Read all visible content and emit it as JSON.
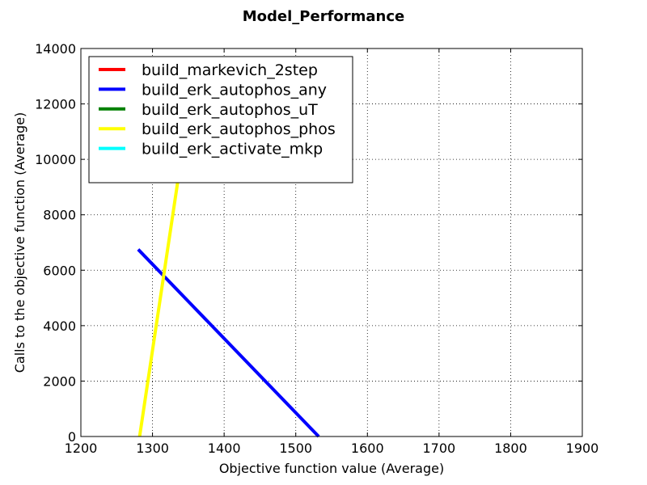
{
  "chart_data": {
    "type": "line",
    "title": "Model_Performance",
    "xlabel": "Objective function value (Average)",
    "ylabel": "Calls to the objective function (Average)",
    "xlim": [
      1200,
      1900
    ],
    "ylim": [
      0,
      14000
    ],
    "x_ticks": [
      1200,
      1300,
      1400,
      1500,
      1600,
      1700,
      1800,
      1900
    ],
    "y_ticks": [
      0,
      2000,
      4000,
      6000,
      8000,
      10000,
      12000,
      14000
    ],
    "grid": true,
    "legend_position": "top-left",
    "series": [
      {
        "name": "build_markevich_2step",
        "color": "#ff0000",
        "x": [],
        "y": []
      },
      {
        "name": "build_erk_autophos_any",
        "color": "#0000ff",
        "x": [
          1280,
          1532
        ],
        "y": [
          6750,
          0
        ]
      },
      {
        "name": "build_erk_autophos_uT",
        "color": "#008000",
        "x": [],
        "y": []
      },
      {
        "name": "build_erk_autophos_phos",
        "color": "#ffff00",
        "x": [
          1282,
          1337
        ],
        "y": [
          0,
          9500
        ]
      },
      {
        "name": "build_erk_activate_mkp",
        "color": "#00ffff",
        "x": [],
        "y": []
      }
    ]
  }
}
